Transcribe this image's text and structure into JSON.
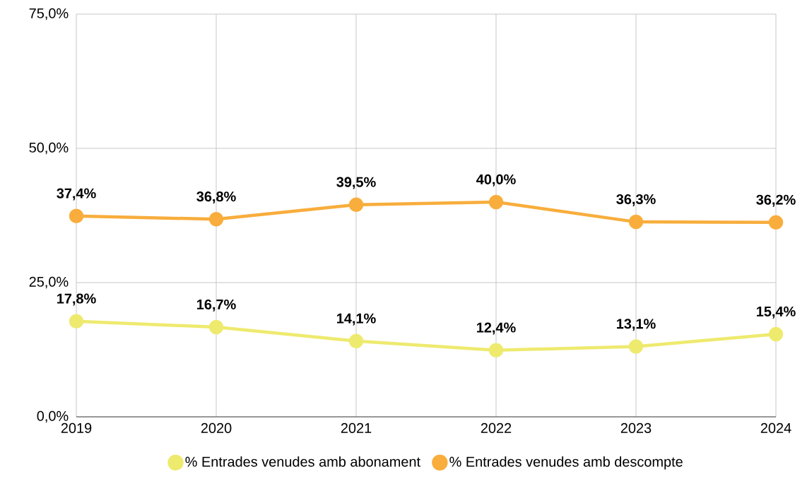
{
  "chart_data": {
    "type": "line",
    "categories": [
      "2019",
      "2020",
      "2021",
      "2022",
      "2023",
      "2024"
    ],
    "series": [
      {
        "name": "% Entrades venudes amb abonament",
        "color": "#eeea6e",
        "values": [
          17.8,
          16.7,
          14.1,
          12.4,
          13.1,
          15.4
        ],
        "value_labels": [
          "17,8%",
          "16,7%",
          "14,1%",
          "12,4%",
          "13,1%",
          "15,4%"
        ]
      },
      {
        "name": "% Entrades venudes amb descompte",
        "color": "#f8ad3c",
        "values": [
          37.4,
          36.8,
          39.5,
          40.0,
          36.3,
          36.2
        ],
        "value_labels": [
          "37,4%",
          "36,8%",
          "39,5%",
          "40,0%",
          "36,3%",
          "36,2%"
        ]
      }
    ],
    "ylim": [
      0,
      75
    ],
    "yticks": [
      {
        "value": 0,
        "label": "0,0%"
      },
      {
        "value": 25,
        "label": "25,0%"
      },
      {
        "value": 50,
        "label": "50,0%"
      },
      {
        "value": 75,
        "label": "75,0%"
      }
    ],
    "grid": true,
    "legend": "bottom",
    "marker": "circle",
    "line_style": "solid"
  }
}
